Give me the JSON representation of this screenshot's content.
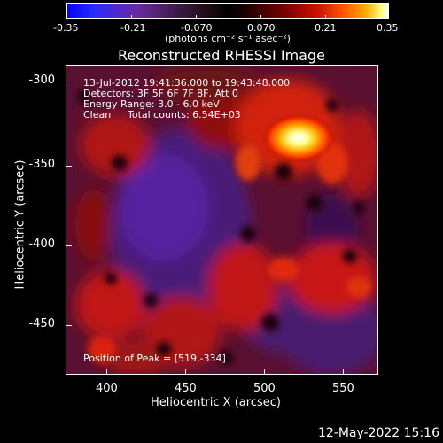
{
  "colorbar": {
    "ticks": [
      "-0.35",
      "-0.21",
      "-0.070",
      "0.070",
      "0.21",
      "0.35"
    ],
    "units": "(photons cm⁻² s⁻¹ asec⁻²)"
  },
  "title": "Reconstructed RHESSI Image",
  "info": {
    "time_range": "13-Jul-2012 19:41:36.000 to 19:43:48.000",
    "detectors": "Detectors: 3F 5F 6F 7F 8F, Att 0",
    "energy_range": "Energy Range: 3.0 - 6.0 keV",
    "algorithm": "Clean",
    "total_counts": "Total counts: 6.54E+03",
    "peak_position": "Position of Peak = [519,-334]"
  },
  "axes": {
    "xlabel": "Heliocentric X (arcsec)",
    "ylabel": "Heliocentric Y (arcsec)",
    "xticks": [
      "400",
      "450",
      "500",
      "550"
    ],
    "yticks": [
      "-300",
      "-350",
      "-400",
      "-450"
    ]
  },
  "timestamp": "12-May-2022 15:16",
  "colors": {
    "background": "#000000",
    "foreground": "#ffffff"
  }
}
